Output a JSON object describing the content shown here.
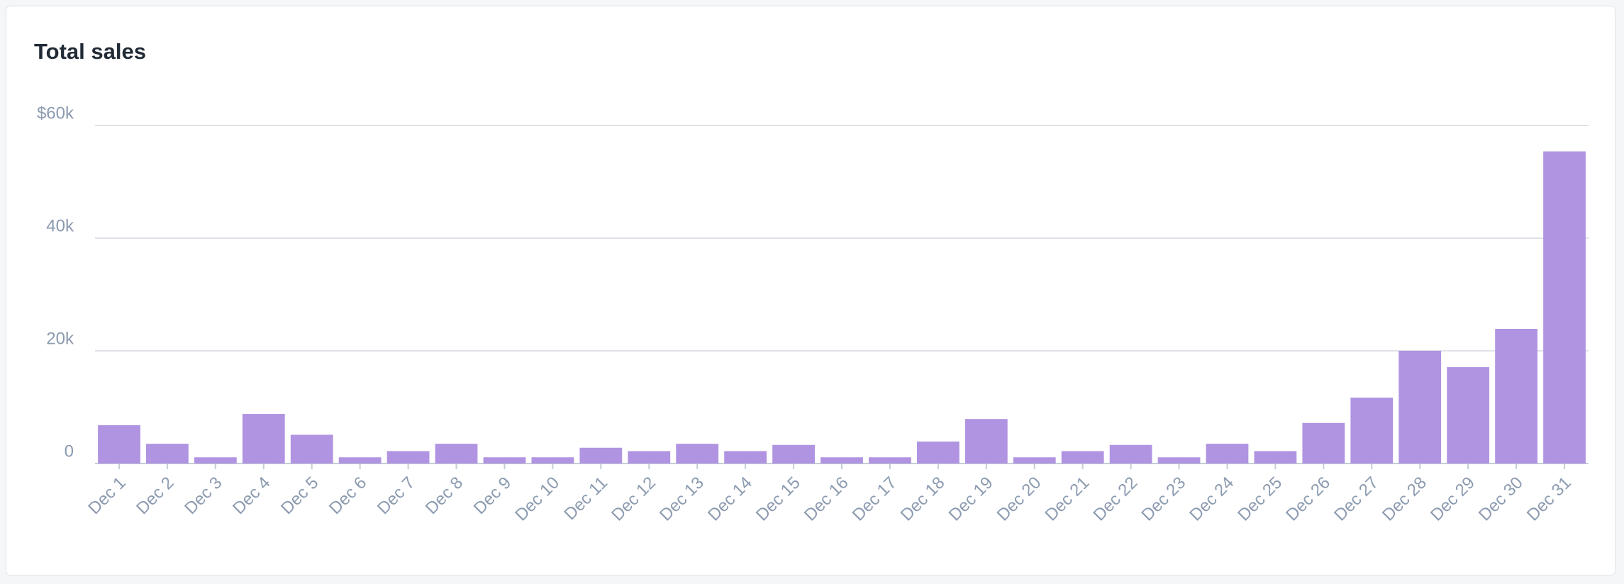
{
  "chart_data": {
    "type": "bar",
    "title": "Total sales",
    "categories": [
      "Dec 1",
      "Dec 2",
      "Dec 3",
      "Dec 4",
      "Dec 5",
      "Dec 6",
      "Dec 7",
      "Dec 8",
      "Dec 9",
      "Dec 10",
      "Dec 11",
      "Dec 12",
      "Dec 13",
      "Dec 14",
      "Dec 15",
      "Dec 16",
      "Dec 17",
      "Dec 18",
      "Dec 19",
      "Dec 20",
      "Dec 21",
      "Dec 22",
      "Dec 23",
      "Dec 24",
      "Dec 25",
      "Dec 26",
      "Dec 27",
      "Dec 28",
      "Dec 29",
      "Dec 30",
      "Dec 31"
    ],
    "values": [
      6800,
      3500,
      1100,
      8800,
      5100,
      1100,
      2200,
      3500,
      1100,
      1100,
      2800,
      2200,
      3500,
      2200,
      3300,
      1100,
      1100,
      3900,
      7900,
      1100,
      2200,
      3300,
      1100,
      3500,
      2200,
      7200,
      11700,
      20000,
      17100,
      23900,
      55400
    ],
    "color": "#b094e1",
    "ylim": [
      0,
      60000
    ],
    "yticks": [
      0,
      {
        "value": 20000,
        "label": "20k"
      },
      {
        "value": 40000,
        "label": "40k"
      },
      {
        "value": 60000,
        "label": "$60k"
      }
    ],
    "grid": true
  }
}
